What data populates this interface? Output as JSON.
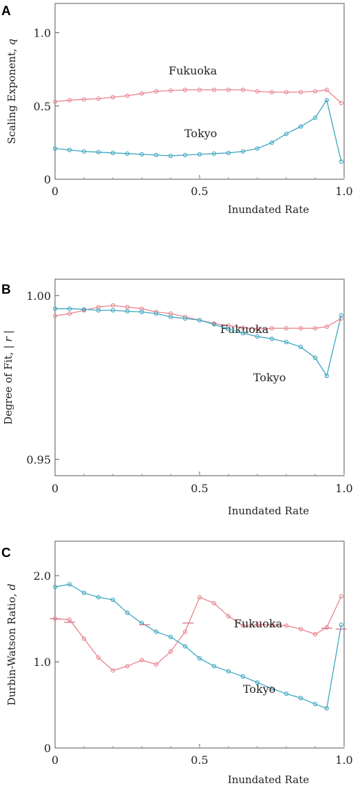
{
  "chart_data": [
    {
      "panel": "A",
      "type": "line",
      "xlabel": "Inundated Rate",
      "ylabel": "Scaling Exponent,",
      "ylabel_symbol": "q",
      "xlim": [
        0,
        1.0
      ],
      "ylim": [
        0,
        1.2
      ],
      "xticks": [
        "0",
        "0.5",
        "1.0"
      ],
      "yticks": [
        "0",
        "0.5",
        "1.0"
      ],
      "grid": false,
      "series": [
        {
          "name": "Fukuoka",
          "color": "#e8848c",
          "x": [
            0,
            0.05,
            0.1,
            0.15,
            0.2,
            0.25,
            0.3,
            0.35,
            0.4,
            0.45,
            0.5,
            0.55,
            0.6,
            0.65,
            0.7,
            0.75,
            0.8,
            0.85,
            0.9,
            0.94,
            0.99
          ],
          "y": [
            0.53,
            0.54,
            0.545,
            0.55,
            0.56,
            0.57,
            0.585,
            0.6,
            0.605,
            0.61,
            0.61,
            0.61,
            0.61,
            0.61,
            0.6,
            0.595,
            0.595,
            0.595,
            0.6,
            0.61,
            0.52
          ]
        },
        {
          "name": "Tokyo",
          "color": "#3aa6bf",
          "x": [
            0,
            0.05,
            0.1,
            0.15,
            0.2,
            0.25,
            0.3,
            0.35,
            0.4,
            0.45,
            0.5,
            0.55,
            0.6,
            0.65,
            0.7,
            0.75,
            0.8,
            0.85,
            0.9,
            0.94,
            0.99
          ],
          "y": [
            0.21,
            0.2,
            0.19,
            0.185,
            0.18,
            0.175,
            0.17,
            0.165,
            0.16,
            0.165,
            0.17,
            0.175,
            0.18,
            0.19,
            0.21,
            0.25,
            0.31,
            0.36,
            0.42,
            0.54,
            0.12
          ]
        }
      ]
    },
    {
      "panel": "B",
      "type": "line",
      "xlabel": "Inundated Rate",
      "ylabel": "Degree of Fit,",
      "ylabel_symbol": "| r |",
      "xlim": [
        0,
        1.0
      ],
      "ylim": [
        0.945,
        1.005
      ],
      "xticks": [
        "0",
        "0.5",
        "1.0"
      ],
      "yticks": [
        "0.95",
        "1.00"
      ],
      "grid": false,
      "series": [
        {
          "name": "Fukuoka",
          "color": "#e8848c",
          "x": [
            0,
            0.05,
            0.1,
            0.15,
            0.2,
            0.25,
            0.3,
            0.35,
            0.4,
            0.45,
            0.5,
            0.55,
            0.6,
            0.65,
            0.7,
            0.75,
            0.8,
            0.85,
            0.9,
            0.94,
            0.99
          ],
          "y": [
            0.9938,
            0.9945,
            0.9955,
            0.9965,
            0.997,
            0.9965,
            0.996,
            0.995,
            0.9945,
            0.9935,
            0.9925,
            0.9915,
            0.9908,
            0.9902,
            0.9898,
            0.99,
            0.99,
            0.99,
            0.99,
            0.9905,
            0.993
          ]
        },
        {
          "name": "Tokyo",
          "color": "#3aa6bf",
          "x": [
            0,
            0.05,
            0.1,
            0.15,
            0.2,
            0.25,
            0.3,
            0.35,
            0.4,
            0.45,
            0.5,
            0.55,
            0.6,
            0.65,
            0.7,
            0.75,
            0.8,
            0.85,
            0.9,
            0.94,
            0.99
          ],
          "y": [
            0.996,
            0.996,
            0.9958,
            0.9955,
            0.9955,
            0.9952,
            0.995,
            0.9945,
            0.9935,
            0.993,
            0.9925,
            0.9912,
            0.9898,
            0.9885,
            0.9875,
            0.9868,
            0.9858,
            0.9843,
            0.981,
            0.9755,
            0.994
          ]
        }
      ]
    },
    {
      "panel": "C",
      "type": "line",
      "xlabel": "Inundated Rate",
      "ylabel": "Durbin-Watson Ratio,",
      "ylabel_symbol": "d",
      "xlim": [
        0,
        1.0
      ],
      "ylim": [
        0,
        2.4
      ],
      "xticks": [
        "0",
        "0.5",
        "1.0"
      ],
      "yticks": [
        "0",
        "1.0",
        "2.0"
      ],
      "grid": false,
      "series": [
        {
          "name": "Fukuoka",
          "color": "#e8848c",
          "x": [
            0,
            0.05,
            0.1,
            0.15,
            0.2,
            0.25,
            0.3,
            0.35,
            0.4,
            0.45,
            0.5,
            0.55,
            0.6,
            0.65,
            0.7,
            0.75,
            0.8,
            0.85,
            0.9,
            0.94,
            0.99
          ],
          "y": [
            1.5,
            1.49,
            1.27,
            1.05,
            0.9,
            0.95,
            1.02,
            0.97,
            1.12,
            1.35,
            1.75,
            1.68,
            1.53,
            1.42,
            1.43,
            1.43,
            1.42,
            1.38,
            1.32,
            1.4,
            1.76
          ]
        },
        {
          "name": "Tokyo",
          "color": "#3aa6bf",
          "x": [
            0,
            0.05,
            0.1,
            0.15,
            0.2,
            0.25,
            0.3,
            0.35,
            0.4,
            0.45,
            0.5,
            0.55,
            0.6,
            0.65,
            0.7,
            0.75,
            0.8,
            0.85,
            0.9,
            0.94,
            0.99
          ],
          "y": [
            1.87,
            1.9,
            1.8,
            1.75,
            1.72,
            1.57,
            1.45,
            1.35,
            1.29,
            1.18,
            1.04,
            0.95,
            0.89,
            0.83,
            0.76,
            0.69,
            0.63,
            0.58,
            0.51,
            0.46,
            1.43
          ]
        }
      ],
      "dl_markers": [
        {
          "x": 0.0,
          "y": 1.5
        },
        {
          "x": 0.05,
          "y": 1.46
        },
        {
          "x": 0.31,
          "y": 1.43
        },
        {
          "x": 0.46,
          "y": 1.45
        },
        {
          "x": 0.94,
          "y": 1.39
        },
        {
          "x": 0.99,
          "y": 1.38
        }
      ]
    }
  ]
}
